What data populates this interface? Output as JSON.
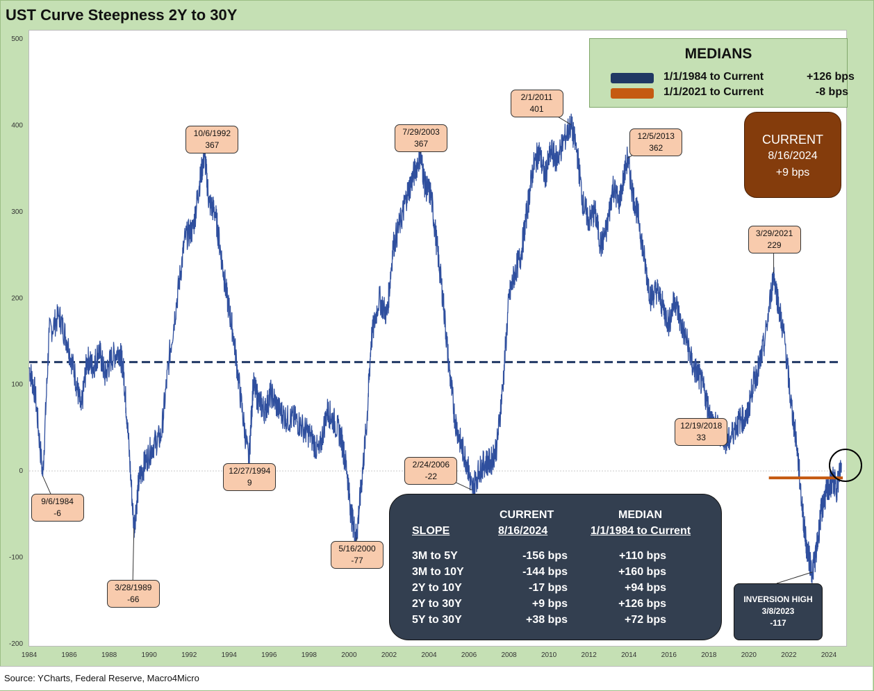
{
  "title": "UST Curve Steepness 2Y to 30Y",
  "source": "Source: YCharts, Federal Reserve, Macro4Micro",
  "colors": {
    "series": "#2f4f9e",
    "median_long": "#203864",
    "median_short": "#c55a11",
    "annotation_fill": "#f8cbad",
    "panel_dark": "#333f50",
    "current_box": "#843c0c"
  },
  "medians": {
    "title": "MEDIANS",
    "rows": [
      {
        "label": "1/1/1984 to Current",
        "value": "+126 bps",
        "color": "#203864"
      },
      {
        "label": "1/1/2021 to Current",
        "value": "-8 bps",
        "color": "#c55a11"
      }
    ]
  },
  "current_box": {
    "line1": "CURRENT",
    "line2": "8/16/2024",
    "line3": "+9 bps"
  },
  "slope_table": {
    "headers": {
      "current": "CURRENT",
      "median": "MEDIAN",
      "slope": "SLOPE",
      "current_date": "8/16/2024",
      "median_range": "1/1/1984 to Current"
    },
    "rows": [
      {
        "slope": "3M to 5Y",
        "current": "-156 bps",
        "median": "+110 bps"
      },
      {
        "slope": "3M to 10Y",
        "current": "-144 bps",
        "median": "+160 bps"
      },
      {
        "slope": "2Y to 10Y",
        "current": "-17 bps",
        "median": "+94 bps"
      },
      {
        "slope": "2Y to 30Y",
        "current": "+9 bps",
        "median": "+126 bps"
      },
      {
        "slope": "5Y to 30Y",
        "current": "+38 bps",
        "median": "+72 bps"
      }
    ]
  },
  "inversion_box": {
    "line1": "INVERSION HIGH",
    "line2": "3/8/2023",
    "line3": "-117"
  },
  "chart_data": {
    "type": "line",
    "title": "UST Curve Steepness 2Y to 30Y",
    "xlabel": "",
    "ylabel": "",
    "xlim": [
      1984,
      2024.8
    ],
    "ylim": [
      -200,
      500
    ],
    "yticks": [
      -200,
      -100,
      0,
      100,
      200,
      300,
      400,
      500
    ],
    "xticks": [
      1984,
      1986,
      1988,
      1990,
      1992,
      1994,
      1996,
      1998,
      2000,
      2002,
      2004,
      2006,
      2008,
      2010,
      2012,
      2014,
      2016,
      2018,
      2020,
      2022,
      2024
    ],
    "grid": false,
    "legend": "top-right",
    "series": [
      {
        "x": [
          1984.0,
          1984.3,
          1984.68,
          1985.0,
          1985.5,
          1985.9,
          1986.3,
          1986.6,
          1986.9,
          1987.2,
          1987.5,
          1987.8,
          1988.1,
          1988.5,
          1988.7,
          1988.9,
          1989.24,
          1989.5,
          1989.8,
          1990.2,
          1990.6,
          1991.0,
          1991.4,
          1991.8,
          1992.2,
          1992.5,
          1992.77,
          1993.0,
          1993.3,
          1993.6,
          1993.9,
          1994.2,
          1994.6,
          1994.99,
          1995.2,
          1995.5,
          1995.8,
          1996.1,
          1996.5,
          1996.9,
          1997.3,
          1997.7,
          1998.1,
          1998.5,
          1998.9,
          1999.2,
          1999.6,
          1999.9,
          2000.1,
          2000.37,
          2000.6,
          2000.9,
          2001.1,
          2001.5,
          2001.9,
          2002.2,
          2002.6,
          2002.9,
          2003.2,
          2003.57,
          2003.8,
          2004.1,
          2004.4,
          2004.7,
          2005.0,
          2005.3,
          2005.6,
          2005.9,
          2006.15,
          2006.5,
          2006.8,
          2007.1,
          2007.4,
          2007.7,
          2008.0,
          2008.3,
          2008.6,
          2008.9,
          2009.2,
          2009.5,
          2009.8,
          2010.1,
          2010.4,
          2010.7,
          2011.09,
          2011.4,
          2011.7,
          2012.0,
          2012.3,
          2012.6,
          2012.9,
          2013.2,
          2013.5,
          2013.93,
          2014.2,
          2014.5,
          2014.8,
          2015.1,
          2015.4,
          2015.7,
          2016.0,
          2016.3,
          2016.6,
          2016.9,
          2017.2,
          2017.5,
          2017.8,
          2018.1,
          2018.4,
          2018.7,
          2018.97,
          2019.3,
          2019.6,
          2019.9,
          2020.2,
          2020.5,
          2020.8,
          2021.24,
          2021.5,
          2021.8,
          2022.1,
          2022.4,
          2022.7,
          2022.9,
          2023.18,
          2023.4,
          2023.6,
          2023.8,
          2024.0,
          2024.2,
          2024.4,
          2024.63
        ],
        "values": [
          120,
          90,
          -6,
          160,
          180,
          150,
          110,
          70,
          130,
          120,
          140,
          110,
          130,
          140,
          120,
          60,
          -66,
          -10,
          10,
          30,
          40,
          130,
          200,
          270,
          280,
          330,
          367,
          310,
          300,
          250,
          200,
          160,
          80,
          9,
          100,
          80,
          70,
          90,
          70,
          60,
          60,
          50,
          40,
          20,
          70,
          60,
          40,
          0,
          -50,
          -77,
          -20,
          60,
          150,
          200,
          180,
          260,
          290,
          320,
          340,
          367,
          330,
          320,
          260,
          200,
          120,
          60,
          30,
          10,
          -22,
          0,
          10,
          10,
          30,
          100,
          200,
          230,
          250,
          300,
          350,
          370,
          340,
          370,
          360,
          380,
          401,
          370,
          310,
          290,
          300,
          260,
          280,
          330,
          310,
          362,
          320,
          290,
          240,
          200,
          210,
          190,
          170,
          200,
          170,
          150,
          120,
          110,
          90,
          60,
          50,
          40,
          33,
          50,
          60,
          60,
          100,
          120,
          150,
          229,
          190,
          150,
          80,
          30,
          -50,
          -90,
          -117,
          -90,
          -50,
          -30,
          -20,
          -10,
          -20,
          9
        ]
      }
    ],
    "reference_lines": [
      {
        "label": "1/1/1984 to Current",
        "value": 126,
        "from": 1984,
        "to": 2024.63
      },
      {
        "label": "1/1/2021 to Current",
        "value": -8,
        "from": 2021.0,
        "to": 2024.63
      }
    ],
    "annotations": [
      {
        "date": "9/6/1984",
        "value": "-6",
        "x": 1984.68,
        "y": -6
      },
      {
        "date": "3/28/1989",
        "value": "-66",
        "x": 1989.24,
        "y": -66
      },
      {
        "date": "10/6/1992",
        "value": "367",
        "x": 1992.77,
        "y": 367
      },
      {
        "date": "12/27/1994",
        "value": "9",
        "x": 1994.99,
        "y": 9
      },
      {
        "date": "5/16/2000",
        "value": "-77",
        "x": 2000.37,
        "y": -77
      },
      {
        "date": "7/29/2003",
        "value": "367",
        "x": 2003.57,
        "y": 367
      },
      {
        "date": "2/24/2006",
        "value": "-22",
        "x": 2006.15,
        "y": -22
      },
      {
        "date": "2/1/2011",
        "value": "401",
        "x": 2011.09,
        "y": 401
      },
      {
        "date": "12/5/2013",
        "value": "362",
        "x": 2013.93,
        "y": 362
      },
      {
        "date": "12/19/2018",
        "value": "33",
        "x": 2018.97,
        "y": 33
      },
      {
        "date": "3/29/2021",
        "value": "229",
        "x": 2021.24,
        "y": 229
      }
    ]
  }
}
